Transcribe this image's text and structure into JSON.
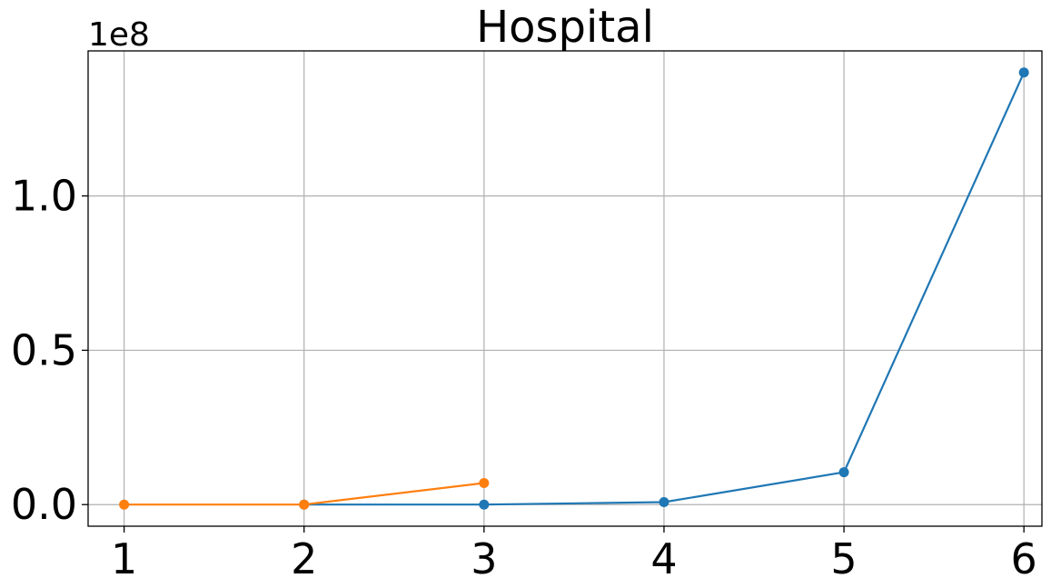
{
  "chart_data": {
    "type": "line",
    "title": "Hospital",
    "xlabel": "",
    "ylabel": "",
    "y_offset_label": "1e8",
    "x_ticks": [
      1,
      2,
      3,
      4,
      5,
      6
    ],
    "y_ticks": [
      0.0,
      0.5,
      1.0
    ],
    "y_tick_labels": [
      "0.0",
      "0.5",
      "1.0"
    ],
    "xlim": [
      0.8,
      6.1
    ],
    "ylim": [
      -0.07,
      1.47
    ],
    "y_unit_scale": 100000000,
    "grid": true,
    "legend": "none",
    "series": [
      {
        "color": "#1f77b4",
        "marker": "circle",
        "x": [
          2,
          3,
          4,
          5,
          6
        ],
        "y": [
          0,
          0,
          0.008,
          0.105,
          1.4
        ]
      },
      {
        "color": "#ff7f0e",
        "marker": "circle",
        "x": [
          1,
          2,
          3
        ],
        "y": [
          0,
          0,
          0.07
        ]
      }
    ]
  }
}
